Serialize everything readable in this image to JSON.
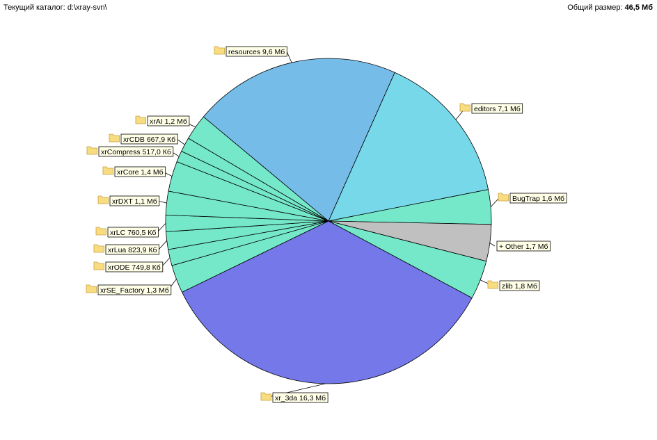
{
  "header": {
    "current_dir_label": "Текущий каталог:",
    "current_dir_value": "d:\\xray-svn\\",
    "total_size_label": "Общий размер:",
    "total_size_value": "46,5 Мб"
  },
  "colors": {
    "teal": "#74e8c8",
    "light_blue": "#76bce8",
    "cyan": "#76d8e8",
    "violet": "#7478e8",
    "gray": "#c0c0c0",
    "folder_fill": "#f8dc80",
    "folder_edge": "#c8a040",
    "label_bg": "#ffffe8"
  },
  "chart_data": {
    "type": "pie",
    "total": "46,5 Мб",
    "slices": [
      {
        "label": "editors 7,1 Мб",
        "value": 7.1,
        "folder": true,
        "color": "#76d8e8"
      },
      {
        "label": "BugTrap 1,6 Мб",
        "value": 1.6,
        "folder": true,
        "color": "#74e8c8"
      },
      {
        "label": "+ Other 1,7 Мб",
        "value": 1.7,
        "folder": false,
        "color": "#c0c0c0"
      },
      {
        "label": "zlib 1,8 Мб",
        "value": 1.8,
        "folder": true,
        "color": "#74e8c8"
      },
      {
        "label": "xr_3da 16,3 Мб",
        "value": 16.3,
        "folder": true,
        "color": "#7478e8"
      },
      {
        "label": "xrSE_Factory 1,3 Мб",
        "value": 1.3,
        "folder": true,
        "color": "#74e8c8"
      },
      {
        "label": "xrODE 749,8 Кб",
        "value": 0.75,
        "folder": true,
        "color": "#74e8c8"
      },
      {
        "label": "xrLua 823,9 Кб",
        "value": 0.82,
        "folder": true,
        "color": "#74e8c8"
      },
      {
        "label": "xrLC 760,5 Кб",
        "value": 0.76,
        "folder": true,
        "color": "#74e8c8"
      },
      {
        "label": "xrDXT 1,1 Мб",
        "value": 1.1,
        "folder": true,
        "color": "#74e8c8"
      },
      {
        "label": "xrCore 1,4 Мб",
        "value": 1.4,
        "folder": true,
        "color": "#74e8c8"
      },
      {
        "label": "xrCompress 517,0 Кб",
        "value": 0.52,
        "folder": true,
        "color": "#74e8c8"
      },
      {
        "label": "xrCDB 667,9 Кб",
        "value": 0.67,
        "folder": true,
        "color": "#74e8c8"
      },
      {
        "label": "xrAI 1,2 Мб",
        "value": 1.2,
        "folder": true,
        "color": "#74e8c8"
      },
      {
        "label": "resources 9,6 Мб",
        "value": 9.6,
        "folder": true,
        "color": "#76bce8"
      }
    ]
  }
}
